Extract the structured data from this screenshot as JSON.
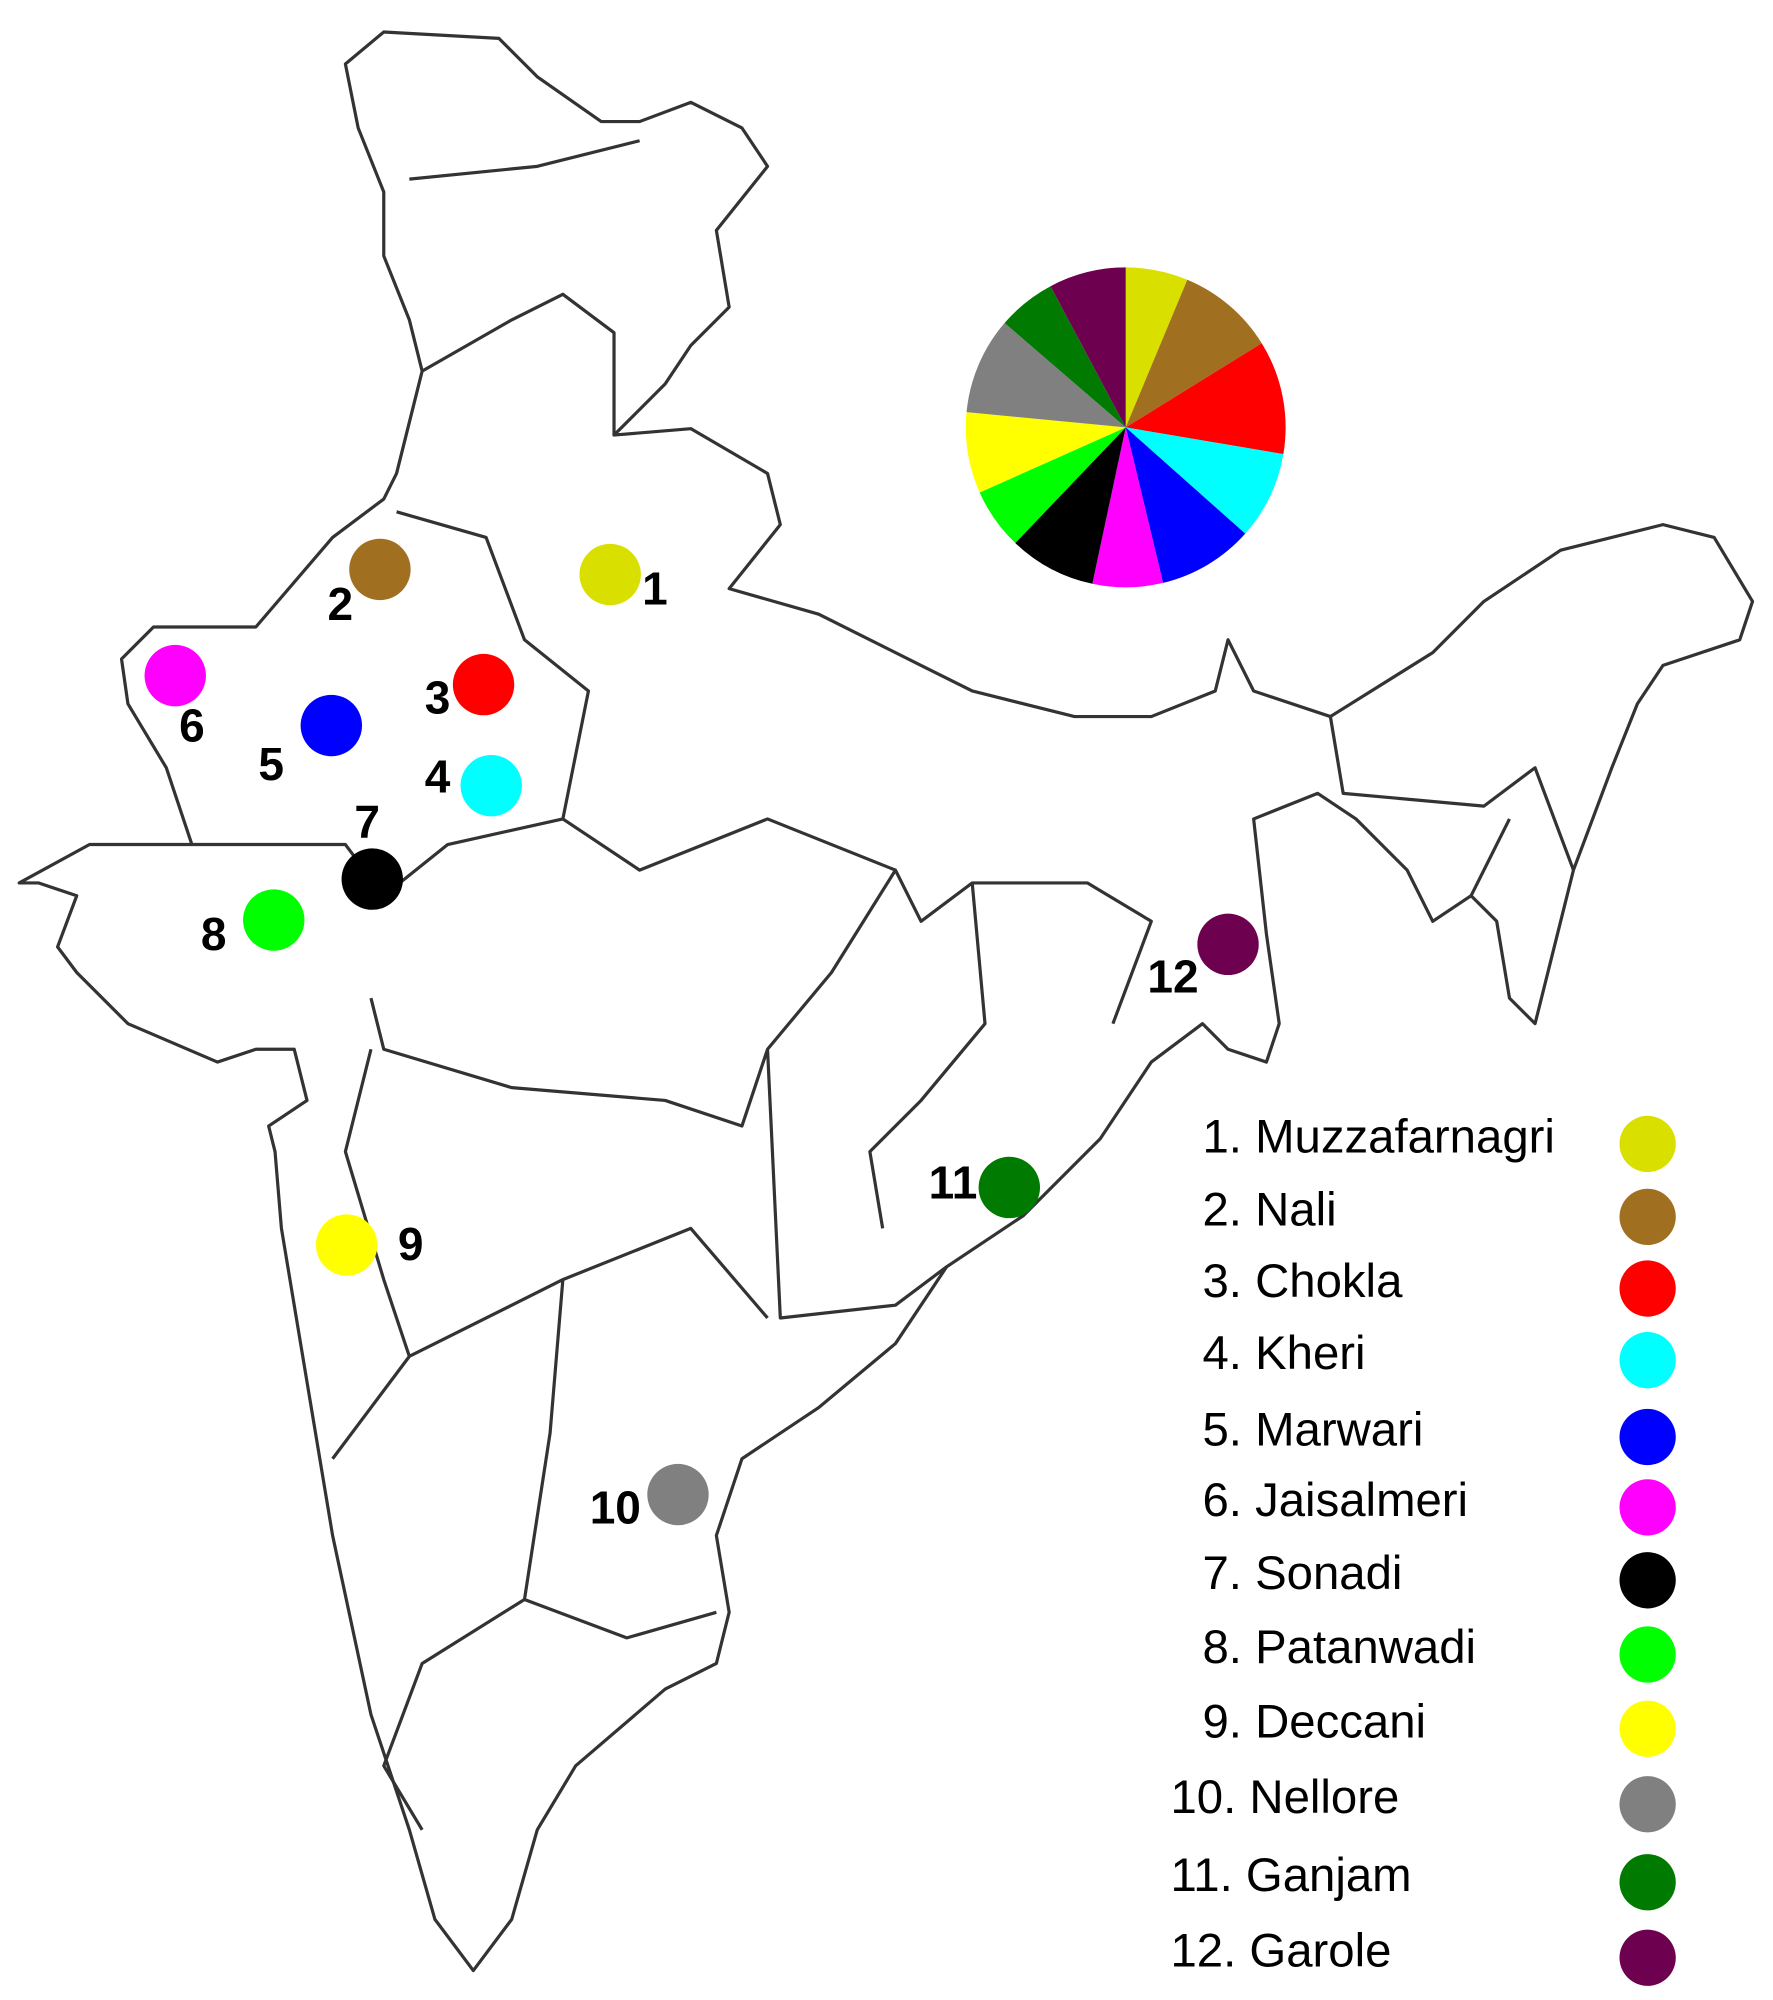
{
  "legend": [
    {
      "label": "1. Muzzafarnagri",
      "color": "#d9e000"
    },
    {
      "label": "2. Nali",
      "color": "#a07020"
    },
    {
      "label": "3. Chokla",
      "color": "#ff0000"
    },
    {
      "label": "4. Kheri",
      "color": "#00ffff"
    },
    {
      "label": "5. Marwari",
      "color": "#0000ff"
    },
    {
      "label": "6. Jaisalmeri",
      "color": "#ff00ff"
    },
    {
      "label": "7. Sonadi",
      "color": "#000000"
    },
    {
      "label": "8. Patanwadi",
      "color": "#00ff00"
    },
    {
      "label": "9. Deccani",
      "color": "#ffff00"
    },
    {
      "label": "10. Nellore",
      "color": "#808080"
    },
    {
      "label": "11. Ganjam",
      "color": "#007a00"
    },
    {
      "label": "12. Garole",
      "color": "#6e0050"
    }
  ],
  "markers": [
    "1",
    "2",
    "3",
    "4",
    "5",
    "6",
    "7",
    "8",
    "9",
    "10",
    "11",
    "12"
  ],
  "chart_data": {
    "type": "pie",
    "values": [
      6.3,
      9.9,
      11.5,
      8.9,
      9.7,
      7.1,
      8.8,
      6.2,
      8.2,
      9.8,
      5.9,
      7.8
    ]
  }
}
